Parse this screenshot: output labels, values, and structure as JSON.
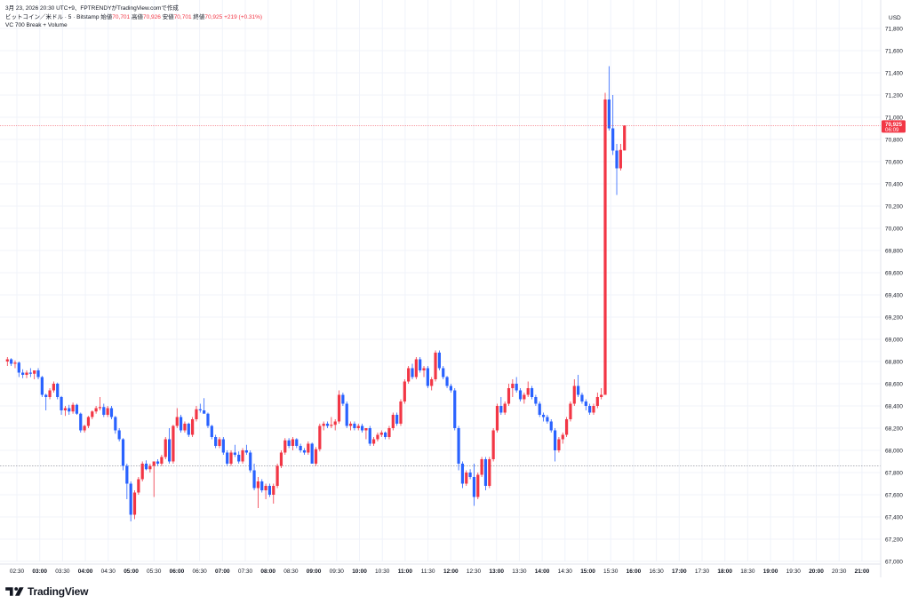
{
  "header": {
    "line1_prefix": "3月 23, 2026 20:30 UTC+9、FPTRENDYがTradingView.comで作成",
    "symbol": "ビットコイン／米ドル · 5 · Bitstamp",
    "open_label": "始値",
    "open_value": "70,701",
    "high_label": "高値",
    "high_value": "70,926",
    "low_label": "安値",
    "low_value": "70,701",
    "close_label": "終値",
    "close_value": "70,925",
    "change": "+219 (+0.31%)",
    "indicator": "VC 700 Break + Volume"
  },
  "price_scale": {
    "currency": "USD",
    "current_price_label": "70,925",
    "countdown_label": "06:09"
  },
  "branding": {
    "logo_text": "TradingView"
  },
  "colors": {
    "up": "#f23645",
    "down": "#2962ff",
    "grid": "#f0f3fa",
    "axis_text": "#131722",
    "price_line": "#f23645",
    "reference_line": "#9598a1"
  },
  "chart_data": {
    "type": "candlestick",
    "ylim": [
      67000,
      71800
    ],
    "y_ticks": [
      67000,
      67200,
      67400,
      67600,
      67800,
      68000,
      68200,
      68400,
      68600,
      68800,
      69000,
      69200,
      69400,
      69600,
      69800,
      70000,
      70200,
      70400,
      70600,
      70800,
      71000,
      71200,
      71400,
      71600,
      71800
    ],
    "y_tick_labels": [
      "67,000",
      "67,200",
      "67,400",
      "67,600",
      "67,800",
      "68,000",
      "68,200",
      "68,400",
      "68,600",
      "68,800",
      "69,000",
      "69,200",
      "69,400",
      "69,600",
      "69,800",
      "70,000",
      "70,200",
      "70,400",
      "70,600",
      "70,800",
      "71,000",
      "71,200",
      "71,400",
      "71,600",
      "71,800"
    ],
    "x_tick_labels": [
      "02:30",
      "03:00",
      "03:30",
      "04:00",
      "04:30",
      "05:00",
      "05:30",
      "06:00",
      "06:30",
      "07:00",
      "07:30",
      "08:00",
      "08:30",
      "09:00",
      "09:30",
      "10:00",
      "10:30",
      "11:00",
      "11:30",
      "12:00",
      "12:30",
      "13:00",
      "13:30",
      "14:00",
      "14:30",
      "15:00",
      "15:30",
      "16:00",
      "16:30",
      "17:00",
      "17:30",
      "18:00",
      "18:30",
      "19:00",
      "19:30",
      "20:00",
      "20:30",
      "21:00"
    ],
    "x_tick_bold": [
      false,
      true,
      false,
      true,
      false,
      true,
      false,
      true,
      false,
      true,
      false,
      true,
      false,
      true,
      false,
      true,
      false,
      true,
      false,
      true,
      false,
      true,
      false,
      true,
      false,
      true,
      false,
      true,
      false,
      true,
      false,
      true,
      false,
      true,
      false,
      true,
      false,
      true
    ],
    "reference_price": 67860,
    "current_price": 70925,
    "candles": [
      {
        "o": 68800,
        "h": 68840,
        "l": 68760,
        "c": 68820
      },
      {
        "o": 68820,
        "h": 68830,
        "l": 68760,
        "c": 68780
      },
      {
        "o": 68780,
        "h": 68810,
        "l": 68740,
        "c": 68790
      },
      {
        "o": 68790,
        "h": 68800,
        "l": 68660,
        "c": 68700
      },
      {
        "o": 68700,
        "h": 68730,
        "l": 68650,
        "c": 68680
      },
      {
        "o": 68680,
        "h": 68720,
        "l": 68650,
        "c": 68700
      },
      {
        "o": 68700,
        "h": 68740,
        "l": 68660,
        "c": 68690
      },
      {
        "o": 68690,
        "h": 68720,
        "l": 68640,
        "c": 68720
      },
      {
        "o": 68720,
        "h": 68740,
        "l": 68640,
        "c": 68660
      },
      {
        "o": 68660,
        "h": 68670,
        "l": 68480,
        "c": 68500
      },
      {
        "o": 68500,
        "h": 68510,
        "l": 68360,
        "c": 68480
      },
      {
        "o": 68480,
        "h": 68560,
        "l": 68460,
        "c": 68540
      },
      {
        "o": 68540,
        "h": 68620,
        "l": 68520,
        "c": 68600
      },
      {
        "o": 68600,
        "h": 68610,
        "l": 68460,
        "c": 68480
      },
      {
        "o": 68480,
        "h": 68490,
        "l": 68320,
        "c": 68360
      },
      {
        "o": 68360,
        "h": 68400,
        "l": 68310,
        "c": 68380
      },
      {
        "o": 68380,
        "h": 68410,
        "l": 68320,
        "c": 68350
      },
      {
        "o": 68350,
        "h": 68430,
        "l": 68330,
        "c": 68410
      },
      {
        "o": 68410,
        "h": 68420,
        "l": 68320,
        "c": 68330
      },
      {
        "o": 68330,
        "h": 68340,
        "l": 68160,
        "c": 68180
      },
      {
        "o": 68180,
        "h": 68230,
        "l": 68160,
        "c": 68220
      },
      {
        "o": 68220,
        "h": 68310,
        "l": 68200,
        "c": 68300
      },
      {
        "o": 68300,
        "h": 68360,
        "l": 68280,
        "c": 68350
      },
      {
        "o": 68350,
        "h": 68400,
        "l": 68330,
        "c": 68380
      },
      {
        "o": 68380,
        "h": 68480,
        "l": 68360,
        "c": 68390
      },
      {
        "o": 68390,
        "h": 68420,
        "l": 68300,
        "c": 68320
      },
      {
        "o": 68320,
        "h": 68400,
        "l": 68300,
        "c": 68380
      },
      {
        "o": 68380,
        "h": 68400,
        "l": 68280,
        "c": 68300
      },
      {
        "o": 68300,
        "h": 68310,
        "l": 68150,
        "c": 68180
      },
      {
        "o": 68180,
        "h": 68200,
        "l": 68080,
        "c": 68100
      },
      {
        "o": 68100,
        "h": 68110,
        "l": 67820,
        "c": 67860
      },
      {
        "o": 67860,
        "h": 67880,
        "l": 67560,
        "c": 67700
      },
      {
        "o": 67700,
        "h": 67720,
        "l": 67360,
        "c": 67420
      },
      {
        "o": 67420,
        "h": 67640,
        "l": 67380,
        "c": 67620
      },
      {
        "o": 67620,
        "h": 67760,
        "l": 67600,
        "c": 67740
      },
      {
        "o": 67740,
        "h": 67900,
        "l": 67720,
        "c": 67880
      },
      {
        "o": 67880,
        "h": 67910,
        "l": 67820,
        "c": 67830
      },
      {
        "o": 67830,
        "h": 67880,
        "l": 67800,
        "c": 67860
      },
      {
        "o": 67860,
        "h": 67870,
        "l": 67580,
        "c": 67900
      },
      {
        "o": 67900,
        "h": 67920,
        "l": 67860,
        "c": 67880
      },
      {
        "o": 67880,
        "h": 67960,
        "l": 67860,
        "c": 67940
      },
      {
        "o": 67940,
        "h": 68120,
        "l": 67920,
        "c": 68100
      },
      {
        "o": 68100,
        "h": 68200,
        "l": 67880,
        "c": 67900
      },
      {
        "o": 67900,
        "h": 68230,
        "l": 67880,
        "c": 68220
      },
      {
        "o": 68220,
        "h": 68380,
        "l": 68200,
        "c": 68300
      },
      {
        "o": 68300,
        "h": 68320,
        "l": 68160,
        "c": 68180
      },
      {
        "o": 68180,
        "h": 68260,
        "l": 68160,
        "c": 68240
      },
      {
        "o": 68240,
        "h": 68250,
        "l": 68120,
        "c": 68140
      },
      {
        "o": 68140,
        "h": 68300,
        "l": 68120,
        "c": 68280
      },
      {
        "o": 68280,
        "h": 68400,
        "l": 68260,
        "c": 68370
      },
      {
        "o": 68370,
        "h": 68420,
        "l": 68340,
        "c": 68360
      },
      {
        "o": 68360,
        "h": 68470,
        "l": 68340,
        "c": 68330
      },
      {
        "o": 68330,
        "h": 68340,
        "l": 68200,
        "c": 68220
      },
      {
        "o": 68220,
        "h": 68230,
        "l": 68100,
        "c": 68120
      },
      {
        "o": 68120,
        "h": 68140,
        "l": 68020,
        "c": 68040
      },
      {
        "o": 68040,
        "h": 68120,
        "l": 68020,
        "c": 68100
      },
      {
        "o": 68100,
        "h": 68120,
        "l": 67960,
        "c": 67980
      },
      {
        "o": 67980,
        "h": 68000,
        "l": 67860,
        "c": 67880
      },
      {
        "o": 67880,
        "h": 68000,
        "l": 67860,
        "c": 67980
      },
      {
        "o": 67980,
        "h": 68050,
        "l": 67940,
        "c": 67960
      },
      {
        "o": 67960,
        "h": 67990,
        "l": 67880,
        "c": 67900
      },
      {
        "o": 67900,
        "h": 68020,
        "l": 67880,
        "c": 68000
      },
      {
        "o": 68000,
        "h": 68050,
        "l": 67960,
        "c": 67980
      },
      {
        "o": 67980,
        "h": 68000,
        "l": 67800,
        "c": 67820
      },
      {
        "o": 67820,
        "h": 67880,
        "l": 67640,
        "c": 67660
      },
      {
        "o": 67660,
        "h": 67760,
        "l": 67480,
        "c": 67720
      },
      {
        "o": 67720,
        "h": 67740,
        "l": 67620,
        "c": 67640
      },
      {
        "o": 67640,
        "h": 67700,
        "l": 67560,
        "c": 67680
      },
      {
        "o": 67680,
        "h": 67700,
        "l": 67580,
        "c": 67600
      },
      {
        "o": 67600,
        "h": 67700,
        "l": 67520,
        "c": 67680
      },
      {
        "o": 67680,
        "h": 67880,
        "l": 67660,
        "c": 67860
      },
      {
        "o": 67860,
        "h": 68000,
        "l": 67840,
        "c": 67980
      },
      {
        "o": 67980,
        "h": 68110,
        "l": 67960,
        "c": 68090
      },
      {
        "o": 68090,
        "h": 68110,
        "l": 68020,
        "c": 68040
      },
      {
        "o": 68040,
        "h": 68120,
        "l": 68000,
        "c": 68100
      },
      {
        "o": 68100,
        "h": 68110,
        "l": 68020,
        "c": 68040
      },
      {
        "o": 68040,
        "h": 68060,
        "l": 67980,
        "c": 68000
      },
      {
        "o": 68000,
        "h": 68020,
        "l": 67960,
        "c": 67980
      },
      {
        "o": 67980,
        "h": 68080,
        "l": 67960,
        "c": 68060
      },
      {
        "o": 68060,
        "h": 68070,
        "l": 67900,
        "c": 67880
      },
      {
        "o": 67880,
        "h": 68030,
        "l": 67860,
        "c": 68010
      },
      {
        "o": 68010,
        "h": 68240,
        "l": 67990,
        "c": 68220
      },
      {
        "o": 68220,
        "h": 68260,
        "l": 68180,
        "c": 68240
      },
      {
        "o": 68240,
        "h": 68260,
        "l": 68200,
        "c": 68220
      },
      {
        "o": 68220,
        "h": 68300,
        "l": 68200,
        "c": 68230
      },
      {
        "o": 68230,
        "h": 68280,
        "l": 68180,
        "c": 68260
      },
      {
        "o": 68260,
        "h": 68540,
        "l": 68240,
        "c": 68500
      },
      {
        "o": 68500,
        "h": 68520,
        "l": 68400,
        "c": 68420
      },
      {
        "o": 68420,
        "h": 68440,
        "l": 68200,
        "c": 68220
      },
      {
        "o": 68220,
        "h": 68260,
        "l": 68180,
        "c": 68240
      },
      {
        "o": 68240,
        "h": 68260,
        "l": 68180,
        "c": 68200
      },
      {
        "o": 68200,
        "h": 68240,
        "l": 68180,
        "c": 68220
      },
      {
        "o": 68220,
        "h": 68240,
        "l": 68160,
        "c": 68180
      },
      {
        "o": 68180,
        "h": 68200,
        "l": 68100,
        "c": 68200
      },
      {
        "o": 68200,
        "h": 68220,
        "l": 68040,
        "c": 68060
      },
      {
        "o": 68060,
        "h": 68120,
        "l": 68040,
        "c": 68100
      },
      {
        "o": 68100,
        "h": 68160,
        "l": 68080,
        "c": 68140
      },
      {
        "o": 68140,
        "h": 68180,
        "l": 68120,
        "c": 68160
      },
      {
        "o": 68160,
        "h": 68170,
        "l": 68100,
        "c": 68120
      },
      {
        "o": 68120,
        "h": 68220,
        "l": 68100,
        "c": 68200
      },
      {
        "o": 68200,
        "h": 68340,
        "l": 68180,
        "c": 68320
      },
      {
        "o": 68320,
        "h": 68340,
        "l": 68220,
        "c": 68240
      },
      {
        "o": 68240,
        "h": 68460,
        "l": 68220,
        "c": 68440
      },
      {
        "o": 68440,
        "h": 68640,
        "l": 68420,
        "c": 68620
      },
      {
        "o": 68620,
        "h": 68760,
        "l": 68600,
        "c": 68740
      },
      {
        "o": 68740,
        "h": 68780,
        "l": 68640,
        "c": 68660
      },
      {
        "o": 68660,
        "h": 68840,
        "l": 68640,
        "c": 68820
      },
      {
        "o": 68820,
        "h": 68840,
        "l": 68700,
        "c": 68720
      },
      {
        "o": 68720,
        "h": 68760,
        "l": 68660,
        "c": 68740
      },
      {
        "o": 68740,
        "h": 68760,
        "l": 68560,
        "c": 68580
      },
      {
        "o": 68580,
        "h": 68660,
        "l": 68540,
        "c": 68640
      },
      {
        "o": 68640,
        "h": 68900,
        "l": 68620,
        "c": 68880
      },
      {
        "o": 68880,
        "h": 68900,
        "l": 68720,
        "c": 68740
      },
      {
        "o": 68740,
        "h": 68760,
        "l": 68640,
        "c": 68660
      },
      {
        "o": 68660,
        "h": 68670,
        "l": 68560,
        "c": 68580
      },
      {
        "o": 68580,
        "h": 68600,
        "l": 68520,
        "c": 68540
      },
      {
        "o": 68540,
        "h": 68560,
        "l": 68180,
        "c": 68200
      },
      {
        "o": 68200,
        "h": 68220,
        "l": 67820,
        "c": 67880
      },
      {
        "o": 67880,
        "h": 67900,
        "l": 67660,
        "c": 67700
      },
      {
        "o": 67700,
        "h": 67820,
        "l": 67680,
        "c": 67800
      },
      {
        "o": 67800,
        "h": 67830,
        "l": 67740,
        "c": 67760
      },
      {
        "o": 67760,
        "h": 67880,
        "l": 67500,
        "c": 67580
      },
      {
        "o": 67580,
        "h": 67800,
        "l": 67560,
        "c": 67780
      },
      {
        "o": 67780,
        "h": 67940,
        "l": 67760,
        "c": 67920
      },
      {
        "o": 67920,
        "h": 67940,
        "l": 67640,
        "c": 67680
      },
      {
        "o": 67680,
        "h": 67940,
        "l": 67660,
        "c": 67920
      },
      {
        "o": 67920,
        "h": 68200,
        "l": 67900,
        "c": 68180
      },
      {
        "o": 68180,
        "h": 68420,
        "l": 68160,
        "c": 68400
      },
      {
        "o": 68400,
        "h": 68480,
        "l": 68320,
        "c": 68340
      },
      {
        "o": 68340,
        "h": 68440,
        "l": 68320,
        "c": 68420
      },
      {
        "o": 68420,
        "h": 68600,
        "l": 68400,
        "c": 68560
      },
      {
        "o": 68560,
        "h": 68640,
        "l": 68480,
        "c": 68600
      },
      {
        "o": 68600,
        "h": 68660,
        "l": 68520,
        "c": 68540
      },
      {
        "o": 68540,
        "h": 68560,
        "l": 68440,
        "c": 68460
      },
      {
        "o": 68460,
        "h": 68520,
        "l": 68420,
        "c": 68500
      },
      {
        "o": 68500,
        "h": 68620,
        "l": 68480,
        "c": 68560
      },
      {
        "o": 68560,
        "h": 68580,
        "l": 68460,
        "c": 68480
      },
      {
        "o": 68480,
        "h": 68500,
        "l": 68400,
        "c": 68420
      },
      {
        "o": 68420,
        "h": 68440,
        "l": 68300,
        "c": 68320
      },
      {
        "o": 68320,
        "h": 68340,
        "l": 68260,
        "c": 68300
      },
      {
        "o": 68300,
        "h": 68320,
        "l": 68240,
        "c": 68260
      },
      {
        "o": 68260,
        "h": 68280,
        "l": 68160,
        "c": 68180
      },
      {
        "o": 68180,
        "h": 68200,
        "l": 67900,
        "c": 68000
      },
      {
        "o": 68000,
        "h": 68120,
        "l": 67980,
        "c": 68100
      },
      {
        "o": 68100,
        "h": 68160,
        "l": 68060,
        "c": 68140
      },
      {
        "o": 68140,
        "h": 68300,
        "l": 68120,
        "c": 68280
      },
      {
        "o": 68280,
        "h": 68440,
        "l": 68260,
        "c": 68420
      },
      {
        "o": 68420,
        "h": 68640,
        "l": 68400,
        "c": 68580
      },
      {
        "o": 68580,
        "h": 68680,
        "l": 68480,
        "c": 68500
      },
      {
        "o": 68500,
        "h": 68520,
        "l": 68420,
        "c": 68440
      },
      {
        "o": 68440,
        "h": 68460,
        "l": 68360,
        "c": 68400
      },
      {
        "o": 68400,
        "h": 68420,
        "l": 68320,
        "c": 68340
      },
      {
        "o": 68340,
        "h": 68420,
        "l": 68320,
        "c": 68400
      },
      {
        "o": 68400,
        "h": 68520,
        "l": 68380,
        "c": 68480
      },
      {
        "o": 68480,
        "h": 68560,
        "l": 68460,
        "c": 68500
      },
      {
        "o": 68500,
        "h": 71220,
        "l": 68500,
        "c": 71160
      },
      {
        "o": 71160,
        "h": 71460,
        "l": 70880,
        "c": 70900
      },
      {
        "o": 70900,
        "h": 71200,
        "l": 70660,
        "c": 70700
      },
      {
        "o": 70700,
        "h": 70760,
        "l": 70300,
        "c": 70540
      },
      {
        "o": 70540,
        "h": 70760,
        "l": 70520,
        "c": 70706
      },
      {
        "o": 70701,
        "h": 70926,
        "l": 70701,
        "c": 70925
      }
    ]
  }
}
